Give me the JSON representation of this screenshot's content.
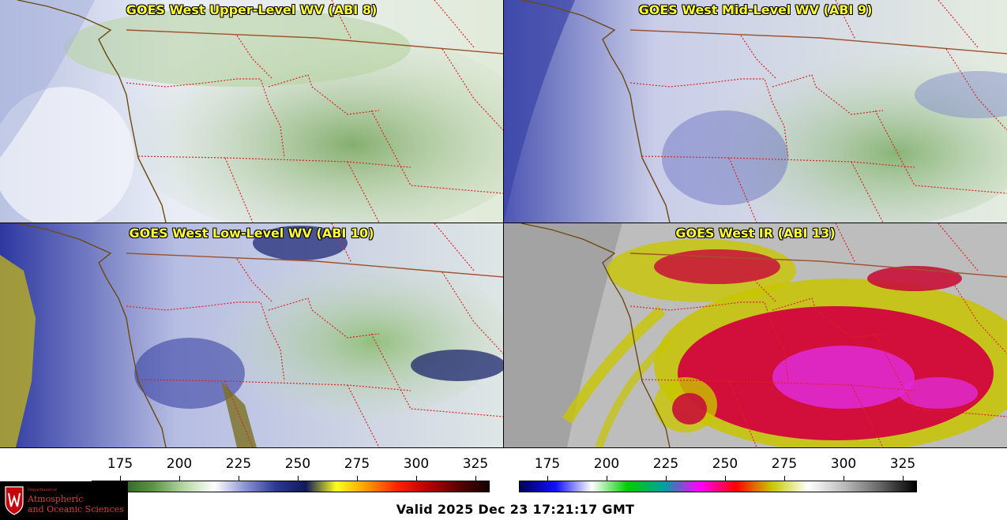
{
  "panels": [
    {
      "title": "GOES West Upper-Level WV (ABI 8)",
      "palette": "wv",
      "base": "#c9d6e6",
      "accent": "#7fae62"
    },
    {
      "title": "GOES West Mid-Level WV (ABI 9)",
      "palette": "wv",
      "base": "#b4bde0",
      "accent": "#84b46c"
    },
    {
      "title": "GOES West Low-Level WV (ABI 10)",
      "palette": "wv",
      "base": "#b9c1e0",
      "accent": "#8cbc70"
    },
    {
      "title": "GOES West IR (ABI 13)",
      "palette": "ir",
      "base": "#b9b9b9",
      "accent": "#d10f3a"
    }
  ],
  "colorbars": [
    {
      "name": "wv-colorbar",
      "ticks": [
        "175",
        "200",
        "225",
        "250",
        "275",
        "300",
        "325"
      ],
      "stops": [
        "#1c3f10",
        "#2f6420",
        "#5d9448",
        "#b6d7a4",
        "#ffffff",
        "#8d95d4",
        "#2c3a92",
        "#111a58",
        "#ffff22",
        "#ff9900",
        "#ff2200",
        "#b60000",
        "#5a0000",
        "#140000"
      ]
    },
    {
      "name": "ir-colorbar",
      "ticks": [
        "175",
        "200",
        "225",
        "250",
        "275",
        "300",
        "325"
      ],
      "stops": [
        "#000055",
        "#1010ff",
        "#ffffff",
        "#00cc00",
        "#00a0a0",
        "#ff00ff",
        "#ff0000",
        "#c8c800",
        "#ffffff",
        "#bbbbbb",
        "#666666",
        "#000000"
      ]
    }
  ],
  "logo": {
    "dept": "Department of",
    "line1": "Atmospheric",
    "line2": "and Oceanic Sciences"
  },
  "valid_text": "Valid 2025 Dec 23 17:21:17 GMT",
  "colors": {
    "title_text": "#ffff33",
    "state_border": "#dd2222",
    "coast": "#6b4a10",
    "intl_border": "#a0522d"
  }
}
